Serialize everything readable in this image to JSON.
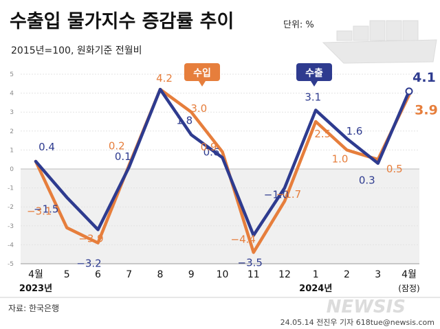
{
  "header": {
    "title": "수출입 물가지수 증감률 추이",
    "unit": "단위: %",
    "subtitle": "2015년=100, 원화기준 전월비"
  },
  "footer": {
    "source": "자료: 한국은행",
    "watermark": "NEWSIS",
    "credit": "24.05.14 전진우 기자 618tue@newsis.com"
  },
  "colors": {
    "export": "#2e3b8f",
    "import": "#e67e3c",
    "negative_band": "#f0f0f0",
    "label_text": "#2e3b8f"
  },
  "chart_data": {
    "type": "line",
    "categories": [
      "4월",
      "5",
      "6",
      "7",
      "8",
      "9",
      "10",
      "11",
      "12",
      "1",
      "2",
      "3",
      "4월"
    ],
    "category_sublabels": [
      "2023년",
      "",
      "",
      "",
      "",
      "",
      "",
      "",
      "",
      "2024년",
      "",
      "",
      "(잠정)"
    ],
    "series": [
      {
        "name": "수출",
        "values": [
          0.4,
          -1.5,
          -3.2,
          0.1,
          4.2,
          1.8,
          0.6,
          -3.5,
          -1.0,
          3.1,
          1.6,
          0.3,
          4.1
        ],
        "labels": [
          "0.4",
          "−1.5",
          "−3.2",
          "0.1",
          "",
          "1.8",
          "0.6",
          "−3.5",
          "−1.0",
          "3.1",
          "1.6",
          "0.3",
          "4.1"
        ]
      },
      {
        "name": "수입",
        "values": [
          0.4,
          -3.1,
          -3.9,
          0.2,
          4.2,
          3.0,
          0.9,
          -4.4,
          -1.7,
          2.5,
          1.0,
          0.5,
          3.9
        ],
        "labels": [
          "",
          "−3.1",
          "−3.9",
          "0.2",
          "4.2",
          "3.0",
          "0.9",
          "−4.4",
          "−1.7",
          "2.5",
          "1.0",
          "0.5",
          "3.9"
        ]
      }
    ],
    "ylim": [
      -5,
      5
    ],
    "yticks": [
      "5",
      "4",
      "3",
      "2",
      "1",
      "0",
      "-1",
      "-2",
      "-3",
      "-4",
      "-5"
    ],
    "legend": [
      "수출",
      "수입"
    ]
  }
}
